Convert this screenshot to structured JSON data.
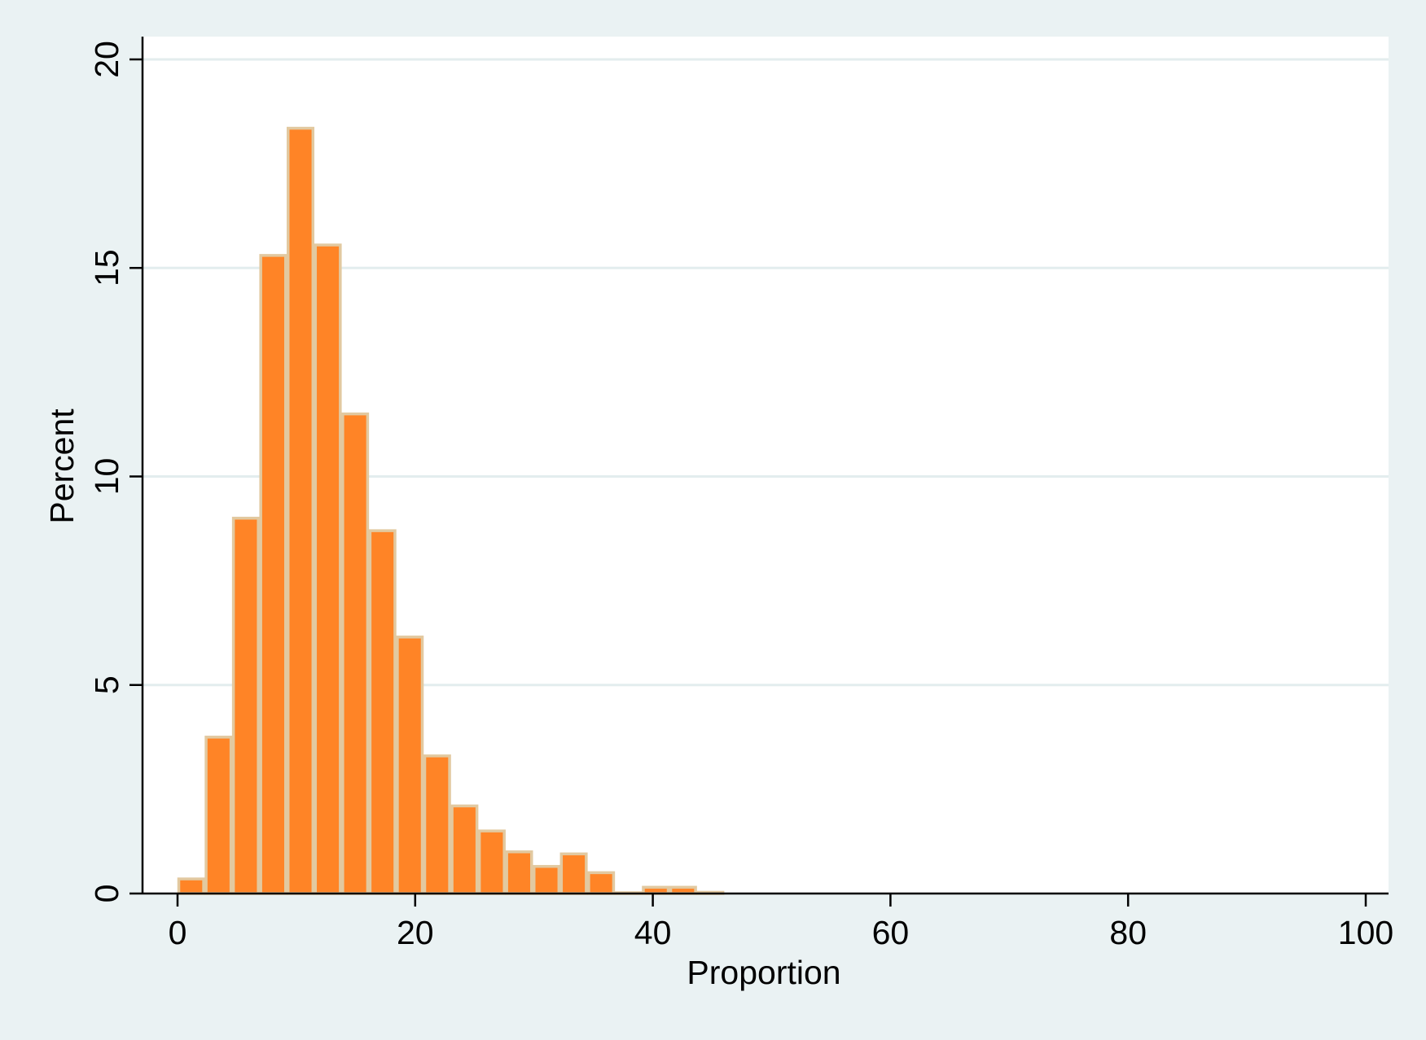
{
  "chart_data": {
    "type": "bar",
    "title": "",
    "xlabel": "Proportion",
    "ylabel": "Percent",
    "xlim": [
      0,
      100
    ],
    "ylim": [
      0,
      20
    ],
    "x_ticks": [
      "0",
      "20",
      "40",
      "60",
      "80",
      "100"
    ],
    "y_ticks": [
      "0",
      "5",
      "10",
      "15",
      "20"
    ],
    "grid": "horizontal",
    "legend": "none",
    "bin_width": 2.3,
    "bins": [
      {
        "start": 0.0,
        "end": 2.3,
        "percent": 0.35
      },
      {
        "start": 2.3,
        "end": 4.6,
        "percent": 3.75
      },
      {
        "start": 4.6,
        "end": 6.9,
        "percent": 9.0
      },
      {
        "start": 6.9,
        "end": 9.2,
        "percent": 15.3
      },
      {
        "start": 9.2,
        "end": 11.5,
        "percent": 18.35
      },
      {
        "start": 11.5,
        "end": 13.8,
        "percent": 15.55
      },
      {
        "start": 13.8,
        "end": 16.1,
        "percent": 11.5
      },
      {
        "start": 16.1,
        "end": 18.4,
        "percent": 8.7
      },
      {
        "start": 18.4,
        "end": 20.7,
        "percent": 6.15
      },
      {
        "start": 20.7,
        "end": 23.0,
        "percent": 3.3
      },
      {
        "start": 23.0,
        "end": 25.3,
        "percent": 2.1
      },
      {
        "start": 25.3,
        "end": 27.6,
        "percent": 1.5
      },
      {
        "start": 27.6,
        "end": 29.9,
        "percent": 1.0
      },
      {
        "start": 29.9,
        "end": 32.2,
        "percent": 0.65
      },
      {
        "start": 32.2,
        "end": 34.5,
        "percent": 0.95
      },
      {
        "start": 34.5,
        "end": 36.8,
        "percent": 0.5
      },
      {
        "start": 36.8,
        "end": 39.1,
        "percent": 0.02
      },
      {
        "start": 39.1,
        "end": 41.4,
        "percent": 0.15
      },
      {
        "start": 41.4,
        "end": 43.7,
        "percent": 0.15
      },
      {
        "start": 43.7,
        "end": 46.0,
        "percent": 0.03
      }
    ],
    "colors": {
      "background": "#eaf2f3",
      "plot_background": "#ffffff",
      "bar_fill": "#ff8426",
      "bar_edge": "#e2c9a0",
      "grid": "#e3edee",
      "axis": "#000000"
    }
  }
}
